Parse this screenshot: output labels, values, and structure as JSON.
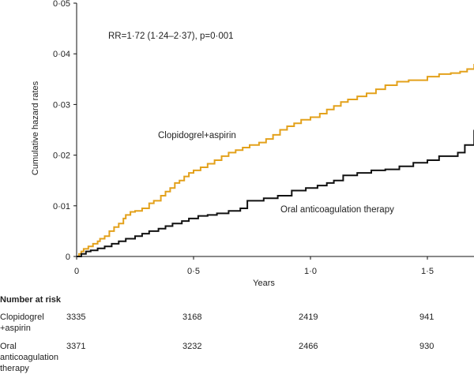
{
  "chart_data": {
    "type": "line",
    "step": true,
    "xlabel": "Years",
    "ylabel": "Cumulative hazard rates",
    "xlim": [
      0,
      1.7
    ],
    "ylim": [
      0,
      0.05
    ],
    "x_ticks": [
      0,
      0.5,
      1.0,
      1.5
    ],
    "x_tick_labels": [
      "0",
      "0·5",
      "1·0",
      "1·5"
    ],
    "y_ticks": [
      0,
      0.01,
      0.02,
      0.03,
      0.04,
      0.05
    ],
    "y_tick_labels": [
      "0",
      "0·01",
      "0·02",
      "0·03",
      "0·04",
      "0·05"
    ],
    "grid": false,
    "annotations": [
      {
        "text": "RR=1·72 (1·24–2·37), p=0·001"
      }
    ],
    "series": [
      {
        "name": "Clopidogrel+aspirin",
        "color": "#E3A11B",
        "x": [
          0,
          0.01,
          0.02,
          0.03,
          0.05,
          0.07,
          0.09,
          0.1,
          0.12,
          0.14,
          0.16,
          0.18,
          0.2,
          0.21,
          0.23,
          0.25,
          0.28,
          0.31,
          0.33,
          0.36,
          0.38,
          0.4,
          0.42,
          0.44,
          0.46,
          0.48,
          0.5,
          0.53,
          0.56,
          0.59,
          0.62,
          0.65,
          0.68,
          0.71,
          0.74,
          0.78,
          0.81,
          0.84,
          0.87,
          0.9,
          0.93,
          0.96,
          1.0,
          1.04,
          1.07,
          1.1,
          1.13,
          1.16,
          1.2,
          1.24,
          1.28,
          1.32,
          1.37,
          1.42,
          1.5,
          1.55,
          1.6,
          1.64,
          1.67,
          1.7
        ],
        "y": [
          0,
          0.0005,
          0.001,
          0.0015,
          0.002,
          0.0025,
          0.003,
          0.0035,
          0.004,
          0.005,
          0.0058,
          0.0065,
          0.0075,
          0.0082,
          0.0088,
          0.009,
          0.0095,
          0.0105,
          0.011,
          0.012,
          0.0128,
          0.0135,
          0.0145,
          0.015,
          0.0158,
          0.0165,
          0.017,
          0.0176,
          0.0183,
          0.019,
          0.0198,
          0.0205,
          0.021,
          0.0215,
          0.022,
          0.0225,
          0.0232,
          0.024,
          0.025,
          0.0257,
          0.0263,
          0.027,
          0.0275,
          0.0282,
          0.029,
          0.0297,
          0.0305,
          0.031,
          0.0316,
          0.0322,
          0.033,
          0.0338,
          0.0345,
          0.0348,
          0.0355,
          0.036,
          0.0362,
          0.0365,
          0.037,
          0.038
        ]
      },
      {
        "name": "Oral anticoagulation therapy",
        "color": "#111111",
        "x": [
          0,
          0.02,
          0.04,
          0.06,
          0.09,
          0.12,
          0.15,
          0.18,
          0.21,
          0.25,
          0.28,
          0.31,
          0.35,
          0.38,
          0.41,
          0.45,
          0.48,
          0.52,
          0.56,
          0.6,
          0.65,
          0.7,
          0.73,
          0.8,
          0.86,
          0.92,
          0.98,
          1.03,
          1.07,
          1.1,
          1.14,
          1.2,
          1.26,
          1.32,
          1.38,
          1.44,
          1.5,
          1.55,
          1.63,
          1.66,
          1.7
        ],
        "y": [
          0,
          0.0005,
          0.001,
          0.0012,
          0.0016,
          0.002,
          0.0025,
          0.003,
          0.0035,
          0.004,
          0.0045,
          0.005,
          0.0055,
          0.006,
          0.0065,
          0.007,
          0.0075,
          0.008,
          0.0082,
          0.0085,
          0.009,
          0.0095,
          0.011,
          0.0115,
          0.012,
          0.013,
          0.0135,
          0.014,
          0.0145,
          0.015,
          0.016,
          0.0165,
          0.017,
          0.0172,
          0.0178,
          0.0185,
          0.019,
          0.0198,
          0.0205,
          0.022,
          0.025
        ]
      }
    ],
    "series_labels": [
      {
        "series": 0,
        "text": "Clopidogrel+aspirin"
      },
      {
        "series": 1,
        "text": "Oral anticoagulation therapy"
      }
    ]
  },
  "risk_table": {
    "title": "Number at risk",
    "rows": [
      {
        "label_lines": [
          "Clopidogrel",
          "+aspirin"
        ],
        "values": [
          "3335",
          "3168",
          "2419",
          "941"
        ]
      },
      {
        "label_lines": [
          "Oral",
          "anticoagulation",
          "therapy"
        ],
        "values": [
          "3371",
          "3232",
          "2466",
          "930"
        ]
      }
    ]
  }
}
